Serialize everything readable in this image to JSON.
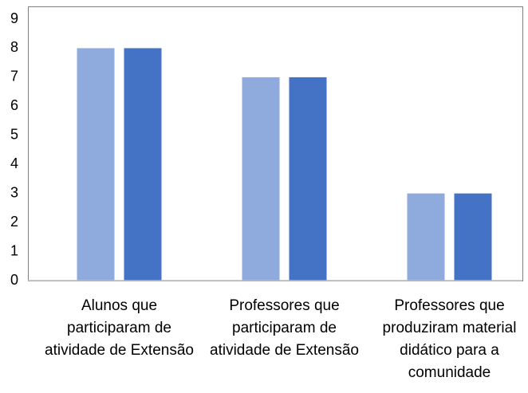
{
  "chart_data": {
    "type": "bar",
    "categories": [
      "Alunos que participaram de atividade de Extensão",
      "Professores que participaram de atividade de Extensão",
      "Professores que produziram material didático para a comunidade"
    ],
    "series": [
      {
        "color": "#8faadc",
        "values": [
          8,
          7,
          3
        ]
      },
      {
        "color": "#4472c4",
        "values": [
          8,
          7,
          3
        ]
      }
    ],
    "ylim": [
      0,
      9
    ],
    "yticks": [
      0,
      1,
      2,
      3,
      4,
      5,
      6,
      7,
      8,
      9
    ],
    "grid": false
  }
}
